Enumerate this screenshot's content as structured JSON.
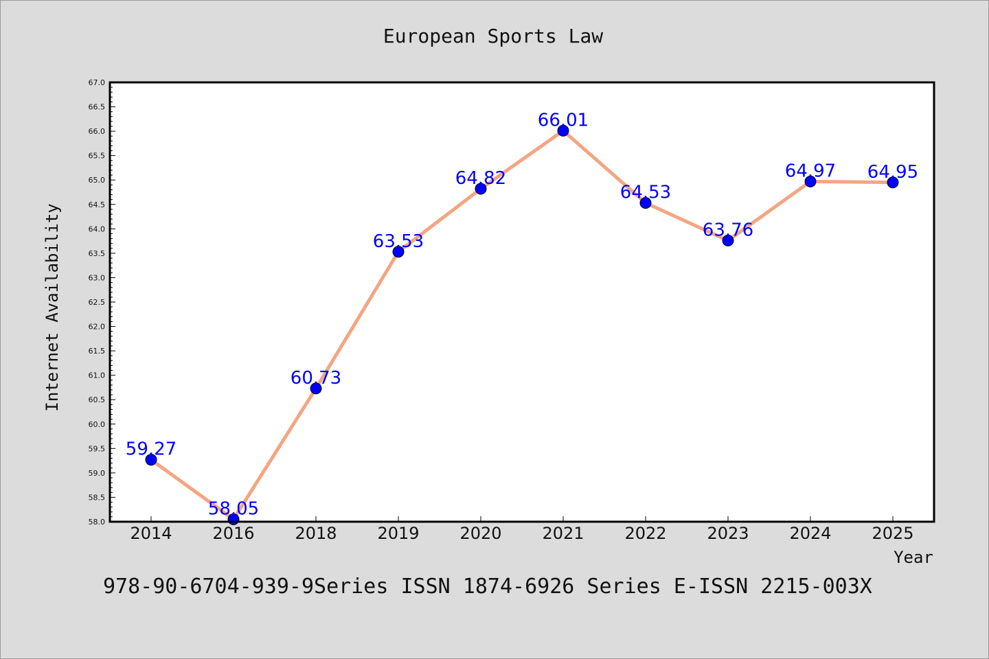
{
  "chart_data": {
    "type": "line",
    "title": "European Sports Law",
    "xlabel": "Year",
    "ylabel": "Internet Availability",
    "categories": [
      "2014",
      "2016",
      "2018",
      "2019",
      "2020",
      "2021",
      "2022",
      "2023",
      "2024",
      "2025"
    ],
    "series": [
      {
        "values": [
          59.27,
          58.05,
          60.73,
          63.53,
          64.82,
          66.01,
          64.53,
          63.76,
          64.97,
          64.95
        ],
        "line_color": "#f4a582",
        "marker_color": "#0000ff"
      }
    ],
    "data_labels": [
      "59.27",
      "58.05",
      "60.73",
      "63.53",
      "64.82",
      "66.01",
      "64.53",
      "63.76",
      "64.97",
      "64.95"
    ],
    "data_label_color": "#0000ff",
    "ylim": [
      58.0,
      67.0
    ],
    "y_ticks": [
      "58.0",
      "58.5",
      "59.0",
      "59.5",
      "60.0",
      "60.5",
      "61.0",
      "61.5",
      "62.0",
      "62.5",
      "63.0",
      "63.5",
      "64.0",
      "64.5",
      "65.0",
      "65.5",
      "66.0",
      "66.5",
      "67.0"
    ],
    "grid": false,
    "legend": "none",
    "background_color": "#dcdcdc",
    "plot_background": "#ffffff"
  },
  "footer_text": "978-90-6704-939-9Series ISSN 1874-6926 Series E-ISSN 2215-003X"
}
